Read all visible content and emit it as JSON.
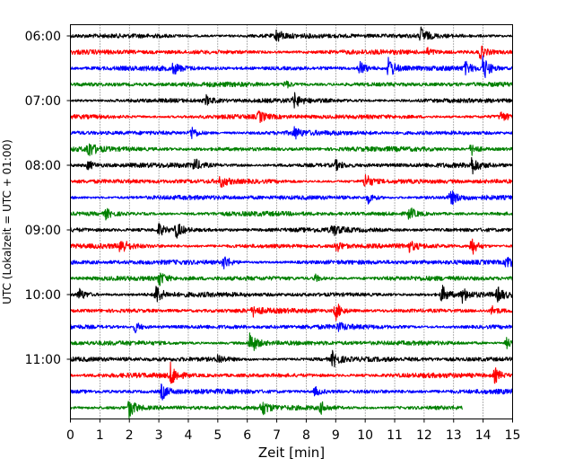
{
  "chart_data": {
    "type": "line",
    "xlabel": "Zeit  [min]",
    "ylabel": "UTC (Lokalzeit = UTC + 01:00)",
    "xlim": [
      0,
      15
    ],
    "x_ticks": [
      0,
      1,
      2,
      3,
      4,
      5,
      6,
      7,
      8,
      9,
      10,
      11,
      12,
      13,
      14,
      15
    ],
    "y_tick_labels": [
      "06:00",
      "07:00",
      "08:00",
      "09:00",
      "10:00",
      "11:00"
    ],
    "trace_interval_minutes": 15,
    "first_trace_start": "06:00",
    "grid_x": true,
    "trace_colors": [
      "#000000",
      "#ff0000",
      "#0000ff",
      "#008000"
    ],
    "traces": [
      {
        "start": "06:00",
        "color": "#000000",
        "end_min": 15,
        "events": [
          {
            "t": 7.0,
            "amp": 7
          },
          {
            "t": 11.9,
            "amp": 9
          }
        ]
      },
      {
        "start": "06:15",
        "color": "#ff0000",
        "end_min": 15,
        "events": [
          {
            "t": 13.9,
            "amp": 7
          },
          {
            "t": 12.1,
            "amp": 4
          }
        ]
      },
      {
        "start": "06:30",
        "color": "#0000ff",
        "end_min": 15,
        "events": [
          {
            "t": 9.8,
            "amp": 9
          },
          {
            "t": 10.8,
            "amp": 13
          },
          {
            "t": 14.0,
            "amp": 14
          },
          {
            "t": 13.4,
            "amp": 6
          },
          {
            "t": 3.5,
            "amp": 6
          }
        ]
      },
      {
        "start": "06:45",
        "color": "#008000",
        "end_min": 15,
        "events": [
          {
            "t": 7.3,
            "amp": 4
          }
        ]
      },
      {
        "start": "07:00",
        "color": "#000000",
        "end_min": 15,
        "events": [
          {
            "t": 7.6,
            "amp": 7
          },
          {
            "t": 4.6,
            "amp": 5
          }
        ]
      },
      {
        "start": "07:15",
        "color": "#ff0000",
        "end_min": 15,
        "events": [
          {
            "t": 6.4,
            "amp": 6
          },
          {
            "t": 14.6,
            "amp": 5
          }
        ]
      },
      {
        "start": "07:30",
        "color": "#0000ff",
        "end_min": 15,
        "events": [
          {
            "t": 4.1,
            "amp": 7
          },
          {
            "t": 7.6,
            "amp": 6
          }
        ]
      },
      {
        "start": "07:45",
        "color": "#008000",
        "end_min": 15,
        "events": [
          {
            "t": 0.6,
            "amp": 9
          },
          {
            "t": 13.6,
            "amp": 7
          }
        ]
      },
      {
        "start": "08:00",
        "color": "#000000",
        "end_min": 15,
        "events": [
          {
            "t": 4.2,
            "amp": 7
          },
          {
            "t": 13.6,
            "amp": 10
          },
          {
            "t": 9.0,
            "amp": 5
          },
          {
            "t": 0.6,
            "amp": 5
          }
        ]
      },
      {
        "start": "08:15",
        "color": "#ff0000",
        "end_min": 15,
        "events": [
          {
            "t": 10.0,
            "amp": 9
          },
          {
            "t": 5.1,
            "amp": 6
          }
        ]
      },
      {
        "start": "08:30",
        "color": "#0000ff",
        "end_min": 15,
        "events": [
          {
            "t": 10.1,
            "amp": 6
          },
          {
            "t": 12.9,
            "amp": 8
          }
        ]
      },
      {
        "start": "08:45",
        "color": "#008000",
        "end_min": 15,
        "events": [
          {
            "t": 11.5,
            "amp": 7
          },
          {
            "t": 1.2,
            "amp": 5
          }
        ]
      },
      {
        "start": "09:00",
        "color": "#000000",
        "end_min": 15,
        "events": [
          {
            "t": 3.0,
            "amp": 7
          },
          {
            "t": 3.6,
            "amp": 9
          },
          {
            "t": 8.9,
            "amp": 6
          }
        ]
      },
      {
        "start": "09:15",
        "color": "#ff0000",
        "end_min": 15,
        "events": [
          {
            "t": 1.7,
            "amp": 9
          },
          {
            "t": 9.0,
            "amp": 7
          },
          {
            "t": 13.6,
            "amp": 11
          },
          {
            "t": 11.5,
            "amp": 5
          }
        ]
      },
      {
        "start": "09:30",
        "color": "#0000ff",
        "end_min": 15,
        "events": [
          {
            "t": 5.2,
            "amp": 8
          },
          {
            "t": 14.8,
            "amp": 8
          }
        ]
      },
      {
        "start": "09:45",
        "color": "#008000",
        "end_min": 15,
        "events": [
          {
            "t": 3.0,
            "amp": 8
          },
          {
            "t": 8.3,
            "amp": 4
          }
        ]
      },
      {
        "start": "10:00",
        "color": "#000000",
        "end_min": 15,
        "events": [
          {
            "t": 0.3,
            "amp": 7
          },
          {
            "t": 2.9,
            "amp": 11
          },
          {
            "t": 12.6,
            "amp": 10
          },
          {
            "t": 13.3,
            "amp": 8
          },
          {
            "t": 14.5,
            "amp": 7
          }
        ]
      },
      {
        "start": "10:15",
        "color": "#ff0000",
        "end_min": 15,
        "events": [
          {
            "t": 9.0,
            "amp": 10
          },
          {
            "t": 6.2,
            "amp": 5
          },
          {
            "t": 14.3,
            "amp": 5
          }
        ]
      },
      {
        "start": "10:30",
        "color": "#0000ff",
        "end_min": 15,
        "events": [
          {
            "t": 2.2,
            "amp": 6
          },
          {
            "t": 9.1,
            "amp": 4
          }
        ]
      },
      {
        "start": "10:45",
        "color": "#008000",
        "end_min": 15,
        "events": [
          {
            "t": 6.1,
            "amp": 14
          },
          {
            "t": 14.8,
            "amp": 6
          }
        ]
      },
      {
        "start": "11:00",
        "color": "#000000",
        "end_min": 15,
        "events": [
          {
            "t": 8.9,
            "amp": 9
          },
          {
            "t": 5.0,
            "amp": 5
          }
        ]
      },
      {
        "start": "11:15",
        "color": "#ff0000",
        "end_min": 15,
        "events": [
          {
            "t": 3.4,
            "amp": 13
          },
          {
            "t": 14.4,
            "amp": 8
          }
        ]
      },
      {
        "start": "11:30",
        "color": "#0000ff",
        "end_min": 15,
        "events": [
          {
            "t": 3.1,
            "amp": 9
          },
          {
            "t": 8.3,
            "amp": 5
          }
        ]
      },
      {
        "start": "11:45",
        "color": "#008000",
        "end_min": 13.3,
        "events": [
          {
            "t": 2.0,
            "amp": 11
          },
          {
            "t": 6.5,
            "amp": 8
          },
          {
            "t": 8.5,
            "amp": 6
          }
        ]
      }
    ]
  }
}
